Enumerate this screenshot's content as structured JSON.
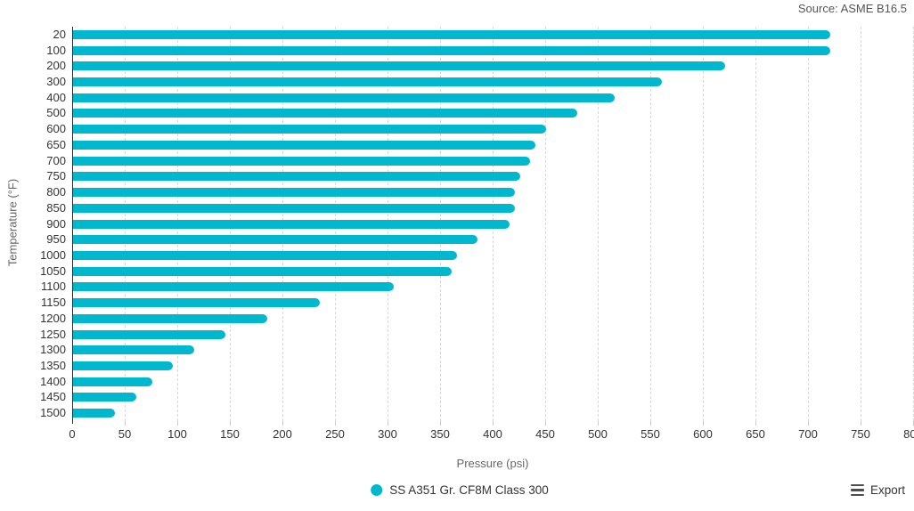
{
  "header": {
    "source": "Source: ASME B16.5"
  },
  "chart_data": {
    "type": "bar",
    "orientation": "horizontal",
    "categories": [
      "20",
      "100",
      "200",
      "300",
      "400",
      "500",
      "600",
      "650",
      "700",
      "750",
      "800",
      "850",
      "900",
      "950",
      "1000",
      "1050",
      "1100",
      "1150",
      "1200",
      "1250",
      "1300",
      "1350",
      "1400",
      "1450",
      "1500"
    ],
    "values": [
      720,
      720,
      620,
      560,
      515,
      480,
      450,
      440,
      435,
      425,
      420,
      420,
      415,
      385,
      365,
      360,
      305,
      235,
      185,
      145,
      115,
      95,
      75,
      60,
      40
    ],
    "xlabel": "Pressure (psi)",
    "ylabel": "Temperature (°F)",
    "xlim": [
      0,
      800
    ],
    "xticks": [
      0,
      50,
      100,
      150,
      200,
      250,
      300,
      350,
      400,
      450,
      500,
      550,
      600,
      650,
      700,
      750,
      800
    ],
    "grid": "vertical-dashed",
    "legend": {
      "position": "bottom-center",
      "series_label": "SS A351 Gr. CF8M Class 300"
    }
  },
  "footer": {
    "export_label": "Export"
  },
  "icons": {
    "export": "hamburger-menu-icon",
    "legend_marker": "circle-icon"
  },
  "colors": {
    "bar": "#00b8cd",
    "axis_text": "#333333",
    "muted_text": "#666666",
    "gridline": "#d8d8d8",
    "axis_line": "#2e2e2e"
  }
}
